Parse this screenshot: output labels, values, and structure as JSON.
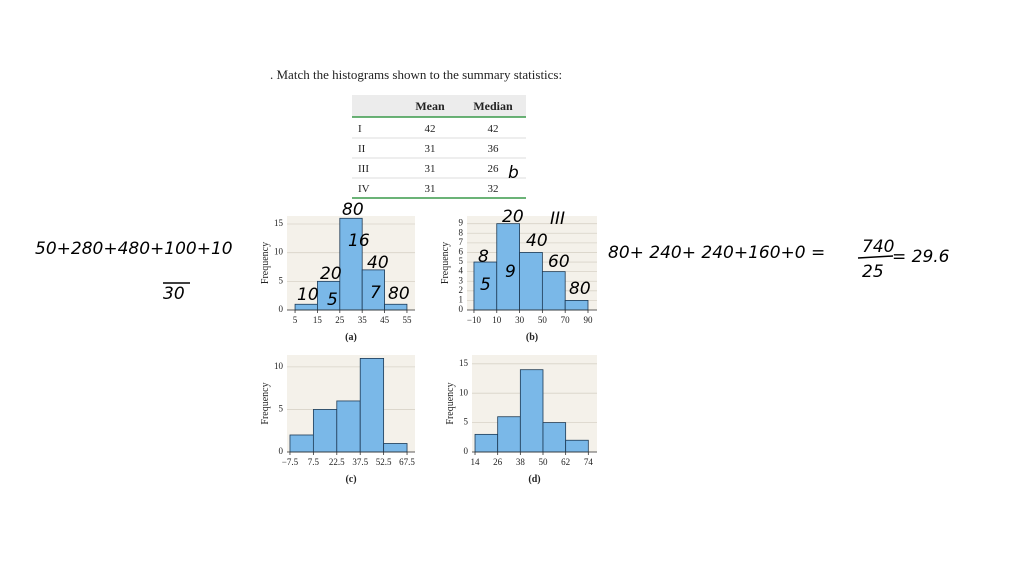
{
  "question": ". Match the histograms shown to the summary statistics:",
  "table": {
    "columns": [
      "Mean",
      "Median"
    ],
    "rows": [
      [
        "I",
        "42",
        "42"
      ],
      [
        "II",
        "31",
        "36"
      ],
      [
        "III",
        "31",
        "26"
      ],
      [
        "IV",
        "31",
        "32"
      ]
    ]
  },
  "chart_data": [
    {
      "type": "histogram",
      "caption": "(a)",
      "ylabel": "Frequency",
      "color": "#7ab8e8",
      "bins": [
        5,
        15,
        25,
        35,
        45,
        55
      ],
      "values": [
        1,
        5,
        16,
        7,
        1
      ],
      "xlim": [
        1.4,
        58.6
      ],
      "ylim": [
        0,
        16.4
      ],
      "xticks": [
        5,
        15,
        25,
        35,
        45,
        55
      ],
      "yticks": [
        0,
        5,
        10,
        15
      ],
      "grid": true
    },
    {
      "type": "histogram",
      "caption": "(b)",
      "ylabel": "Frequency",
      "color": "#7ab8e8",
      "bins": [
        -10,
        10,
        30,
        50,
        70,
        90
      ],
      "values": [
        5,
        9,
        6,
        4,
        1
      ],
      "xlim": [
        -16.1,
        97.9
      ],
      "ylim": [
        0,
        9.8
      ],
      "xticks": [
        {
          "value": -10,
          "label": "−10"
        },
        10,
        30,
        50,
        70,
        90
      ],
      "yticks": [
        0,
        1,
        2,
        3,
        4,
        5,
        6,
        7,
        8,
        9
      ],
      "grid": true
    },
    {
      "type": "histogram",
      "caption": "(c)",
      "ylabel": "Frequency",
      "color": "#7ab8e8",
      "bins": [
        -7.5,
        7.5,
        22.5,
        37.5,
        52.5,
        67.5
      ],
      "values": [
        2,
        5,
        6,
        11,
        1
      ],
      "xlim": [
        -9.4,
        72.6
      ],
      "ylim": [
        0,
        11.4
      ],
      "xticks": [
        {
          "value": -7.5,
          "label": "−7.5"
        },
        7.5,
        22.5,
        37.5,
        52.5,
        67.5
      ],
      "yticks": [
        0,
        5,
        10
      ],
      "grid": true
    },
    {
      "type": "histogram",
      "caption": "(d)",
      "ylabel": "Frequency",
      "color": "#7ab8e8",
      "bins": [
        14,
        26,
        38,
        50,
        62,
        74
      ],
      "values": [
        3,
        6,
        14,
        5,
        2
      ],
      "xlim": [
        12.4,
        78.6
      ],
      "ylim": [
        0,
        16.5
      ],
      "xticks": [
        14,
        26,
        38,
        50,
        62,
        74
      ],
      "yticks": [
        0,
        5,
        10,
        15
      ],
      "grid": true
    }
  ],
  "annotations": [
    "50+280+480+100+10",
    "30",
    "80+ 240+ 240+160+0 =",
    "740",
    "25",
    "= 29.6",
    "b",
    "III",
    "10",
    "20",
    "5",
    "80",
    "16",
    "40",
    "7",
    "80",
    "8",
    "5",
    "20",
    "9",
    "40",
    "60",
    "80"
  ]
}
